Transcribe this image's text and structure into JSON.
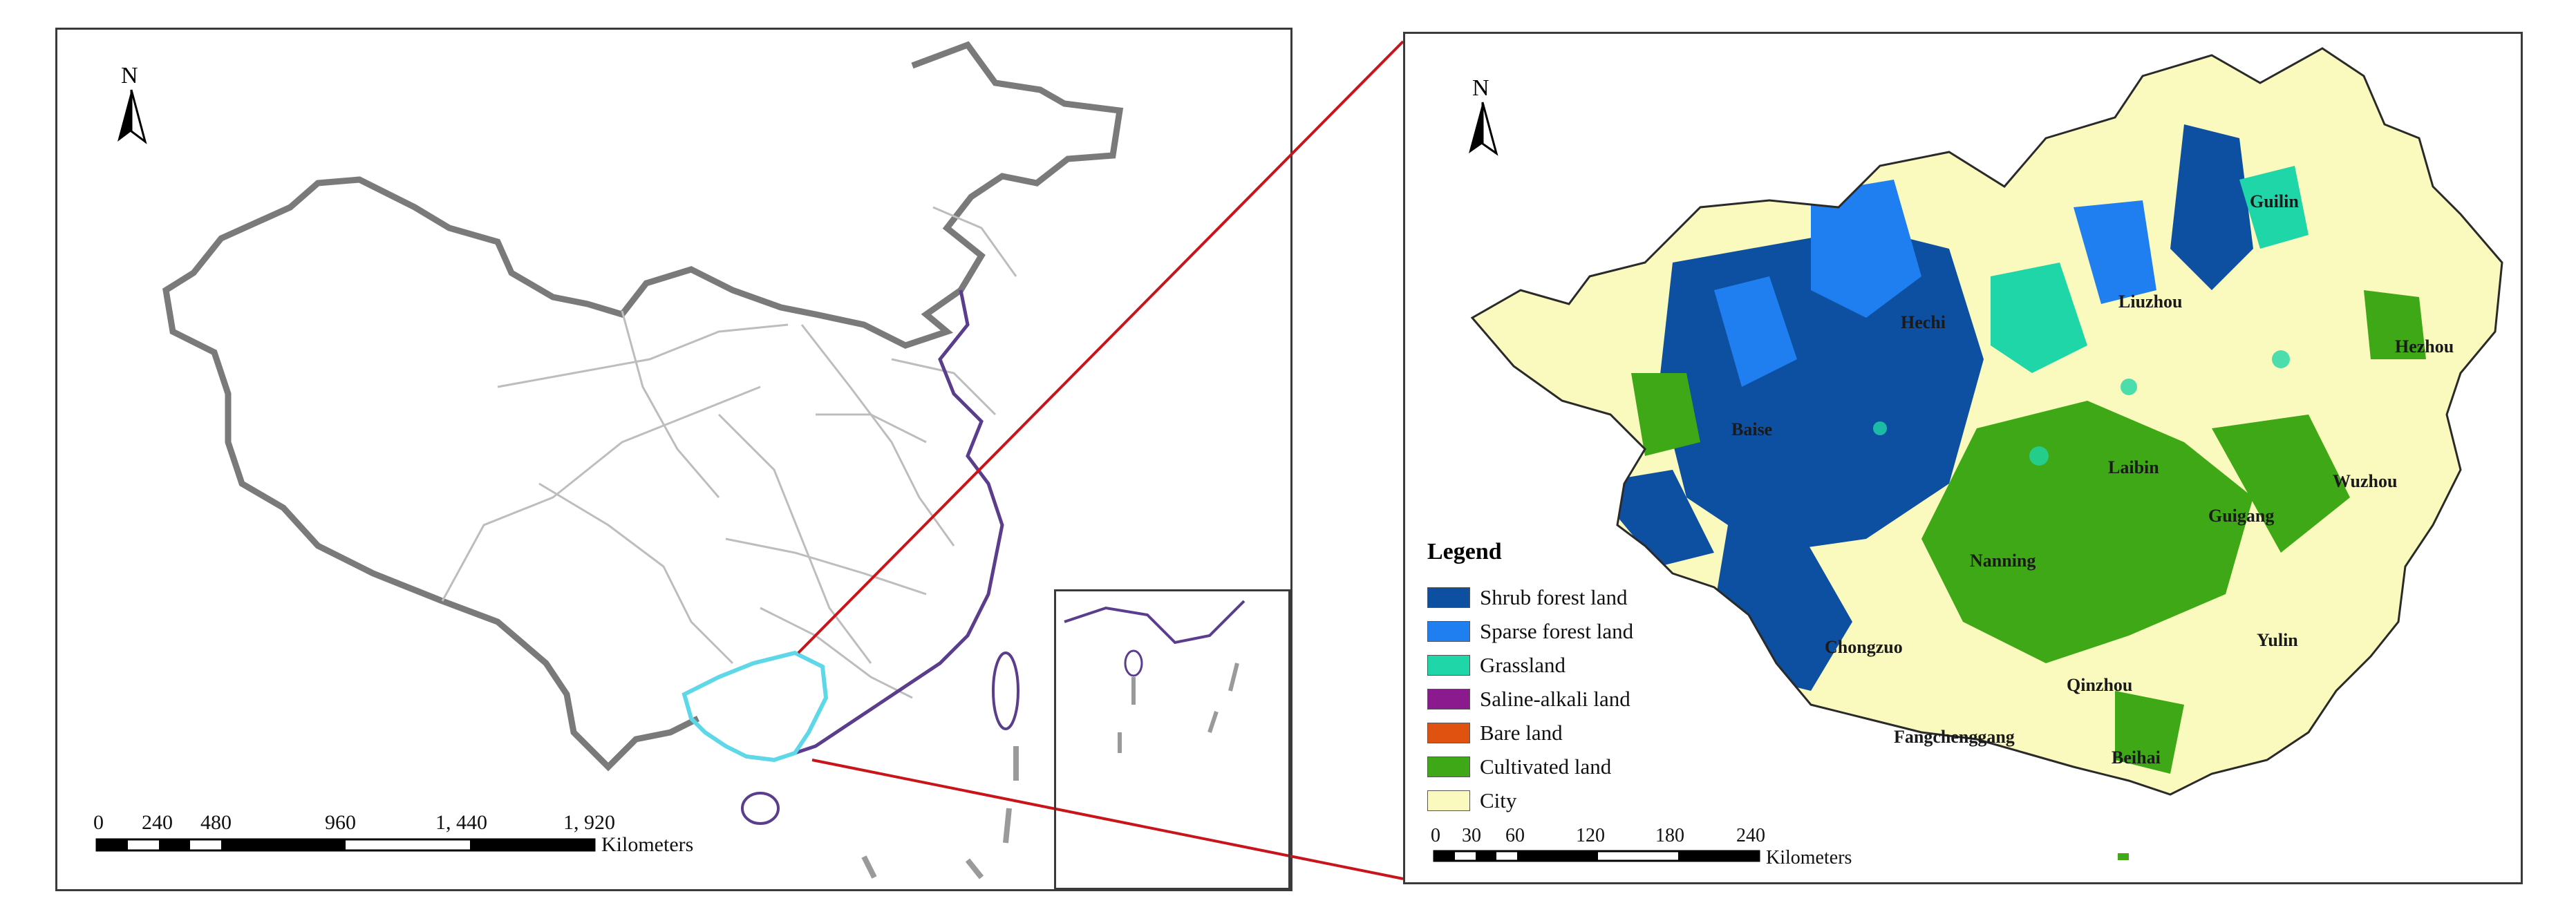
{
  "left_map": {
    "north_label": "N",
    "scale": {
      "ticks": [
        "0",
        "240",
        "480",
        "960",
        "1, 440",
        "1, 920"
      ],
      "unit": "Kilometers"
    },
    "highlight_color": "#5ed8e8",
    "coast_color": "#5a3d8c"
  },
  "right_map": {
    "north_label": "N",
    "scale": {
      "ticks": [
        "0",
        "30",
        "60",
        "120",
        "180",
        "240"
      ],
      "unit": "Kilometers"
    },
    "cities": [
      "Guilin",
      "Liuzhou",
      "Hechi",
      "Hezhou",
      "Baise",
      "Laibin",
      "Wuzhou",
      "Guigang",
      "Nanning",
      "Chongzuo",
      "Yulin",
      "Qinzhou",
      "Fangchenggang",
      "Beihai"
    ]
  },
  "legend": {
    "title": "Legend",
    "items": [
      {
        "label": "Shrub forest land",
        "color": "#0d4fa1"
      },
      {
        "label": "Sparse forest land",
        "color": "#1f7ff0"
      },
      {
        "label": "Grassland",
        "color": "#1fd6a8"
      },
      {
        "label": "Saline-alkali land",
        "color": "#8c1a8f"
      },
      {
        "label": "Bare land",
        "color": "#e0520f"
      },
      {
        "label": "Cultivated land",
        "color": "#3fa816"
      },
      {
        "label": "City",
        "color": "#fbfabe"
      }
    ]
  },
  "connector_color": "#c8141a"
}
